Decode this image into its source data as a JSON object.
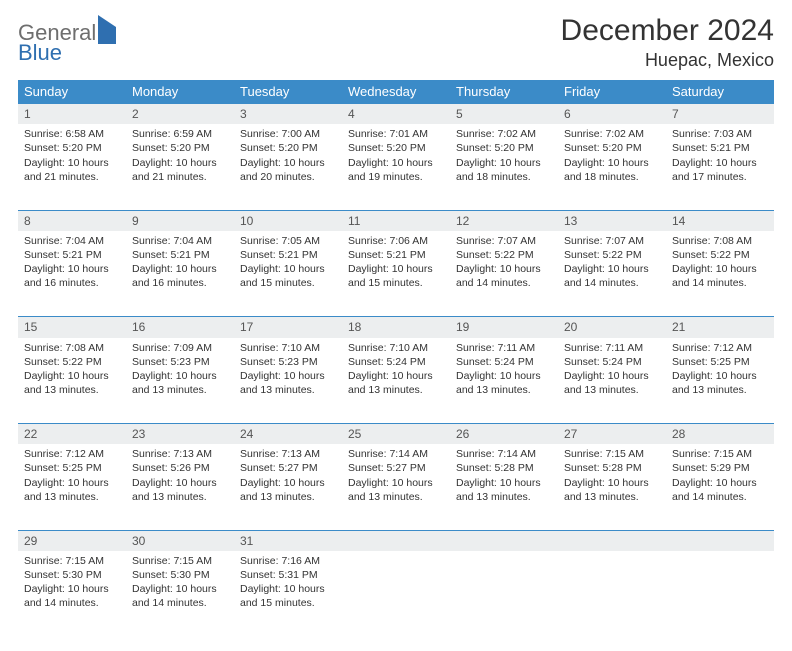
{
  "logo": {
    "part1": "General",
    "part2": "Blue"
  },
  "title": "December 2024",
  "location": "Huepac, Mexico",
  "colors": {
    "header_bg": "#3b8bc8",
    "header_text": "#ffffff",
    "daynum_bg": "#eceeef",
    "rule": "#3b8bc8",
    "body_text": "#333333",
    "logo_gray": "#6e6e6e",
    "logo_blue": "#2f6fb0"
  },
  "weekdays": [
    "Sunday",
    "Monday",
    "Tuesday",
    "Wednesday",
    "Thursday",
    "Friday",
    "Saturday"
  ],
  "weeks": [
    [
      {
        "n": "1",
        "sr": "6:58 AM",
        "ss": "5:20 PM",
        "dl": "10 hours and 21 minutes."
      },
      {
        "n": "2",
        "sr": "6:59 AM",
        "ss": "5:20 PM",
        "dl": "10 hours and 21 minutes."
      },
      {
        "n": "3",
        "sr": "7:00 AM",
        "ss": "5:20 PM",
        "dl": "10 hours and 20 minutes."
      },
      {
        "n": "4",
        "sr": "7:01 AM",
        "ss": "5:20 PM",
        "dl": "10 hours and 19 minutes."
      },
      {
        "n": "5",
        "sr": "7:02 AM",
        "ss": "5:20 PM",
        "dl": "10 hours and 18 minutes."
      },
      {
        "n": "6",
        "sr": "7:02 AM",
        "ss": "5:20 PM",
        "dl": "10 hours and 18 minutes."
      },
      {
        "n": "7",
        "sr": "7:03 AM",
        "ss": "5:21 PM",
        "dl": "10 hours and 17 minutes."
      }
    ],
    [
      {
        "n": "8",
        "sr": "7:04 AM",
        "ss": "5:21 PM",
        "dl": "10 hours and 16 minutes."
      },
      {
        "n": "9",
        "sr": "7:04 AM",
        "ss": "5:21 PM",
        "dl": "10 hours and 16 minutes."
      },
      {
        "n": "10",
        "sr": "7:05 AM",
        "ss": "5:21 PM",
        "dl": "10 hours and 15 minutes."
      },
      {
        "n": "11",
        "sr": "7:06 AM",
        "ss": "5:21 PM",
        "dl": "10 hours and 15 minutes."
      },
      {
        "n": "12",
        "sr": "7:07 AM",
        "ss": "5:22 PM",
        "dl": "10 hours and 14 minutes."
      },
      {
        "n": "13",
        "sr": "7:07 AM",
        "ss": "5:22 PM",
        "dl": "10 hours and 14 minutes."
      },
      {
        "n": "14",
        "sr": "7:08 AM",
        "ss": "5:22 PM",
        "dl": "10 hours and 14 minutes."
      }
    ],
    [
      {
        "n": "15",
        "sr": "7:08 AM",
        "ss": "5:22 PM",
        "dl": "10 hours and 13 minutes."
      },
      {
        "n": "16",
        "sr": "7:09 AM",
        "ss": "5:23 PM",
        "dl": "10 hours and 13 minutes."
      },
      {
        "n": "17",
        "sr": "7:10 AM",
        "ss": "5:23 PM",
        "dl": "10 hours and 13 minutes."
      },
      {
        "n": "18",
        "sr": "7:10 AM",
        "ss": "5:24 PM",
        "dl": "10 hours and 13 minutes."
      },
      {
        "n": "19",
        "sr": "7:11 AM",
        "ss": "5:24 PM",
        "dl": "10 hours and 13 minutes."
      },
      {
        "n": "20",
        "sr": "7:11 AM",
        "ss": "5:24 PM",
        "dl": "10 hours and 13 minutes."
      },
      {
        "n": "21",
        "sr": "7:12 AM",
        "ss": "5:25 PM",
        "dl": "10 hours and 13 minutes."
      }
    ],
    [
      {
        "n": "22",
        "sr": "7:12 AM",
        "ss": "5:25 PM",
        "dl": "10 hours and 13 minutes."
      },
      {
        "n": "23",
        "sr": "7:13 AM",
        "ss": "5:26 PM",
        "dl": "10 hours and 13 minutes."
      },
      {
        "n": "24",
        "sr": "7:13 AM",
        "ss": "5:27 PM",
        "dl": "10 hours and 13 minutes."
      },
      {
        "n": "25",
        "sr": "7:14 AM",
        "ss": "5:27 PM",
        "dl": "10 hours and 13 minutes."
      },
      {
        "n": "26",
        "sr": "7:14 AM",
        "ss": "5:28 PM",
        "dl": "10 hours and 13 minutes."
      },
      {
        "n": "27",
        "sr": "7:15 AM",
        "ss": "5:28 PM",
        "dl": "10 hours and 13 minutes."
      },
      {
        "n": "28",
        "sr": "7:15 AM",
        "ss": "5:29 PM",
        "dl": "10 hours and 14 minutes."
      }
    ],
    [
      {
        "n": "29",
        "sr": "7:15 AM",
        "ss": "5:30 PM",
        "dl": "10 hours and 14 minutes."
      },
      {
        "n": "30",
        "sr": "7:15 AM",
        "ss": "5:30 PM",
        "dl": "10 hours and 14 minutes."
      },
      {
        "n": "31",
        "sr": "7:16 AM",
        "ss": "5:31 PM",
        "dl": "10 hours and 15 minutes."
      },
      null,
      null,
      null,
      null
    ]
  ],
  "labels": {
    "sunrise": "Sunrise: ",
    "sunset": "Sunset: ",
    "daylight": "Daylight: "
  }
}
